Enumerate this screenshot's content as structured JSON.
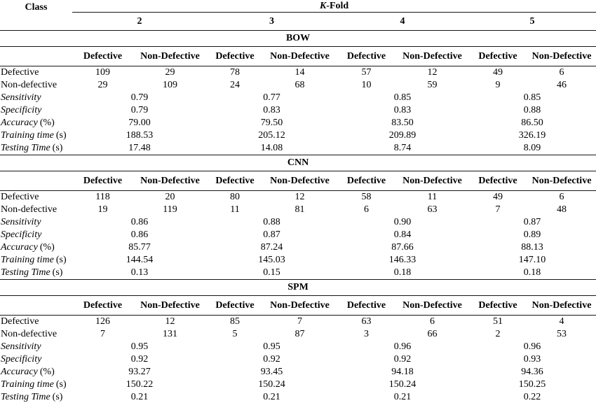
{
  "header": {
    "class": "Class",
    "k": "K",
    "fold_suffix": "-Fold",
    "folds": [
      "2",
      "3",
      "4",
      "5"
    ]
  },
  "labels": {
    "defective_col": "Defective",
    "non_defective_col": "Non-Defective",
    "defective_row": "Defective",
    "non_defective_row": "Non-defective",
    "sensitivity": "Sensitivity",
    "specificity": "Specificity",
    "accuracy": "Accuracy",
    "accuracy_unit": "(%)",
    "training_time": "Training time",
    "testing_time": "Testing Time",
    "time_unit": "(s)"
  },
  "sections": [
    {
      "title": "BOW",
      "defective": [
        "109",
        "29",
        "78",
        "14",
        "57",
        "12",
        "49",
        "6"
      ],
      "non_defective": [
        "29",
        "109",
        "24",
        "68",
        "10",
        "59",
        "9",
        "46"
      ],
      "sensitivity": [
        "0.79",
        "0.77",
        "0.85",
        "0.85"
      ],
      "specificity": [
        "0.79",
        "0.83",
        "0.83",
        "0.88"
      ],
      "accuracy": [
        "79.00",
        "79.50",
        "83.50",
        "86.50"
      ],
      "training_time": [
        "188.53",
        "205.12",
        "209.89",
        "326.19"
      ],
      "testing_time": [
        "17.48",
        "14.08",
        "8.74",
        "8.09"
      ]
    },
    {
      "title": "CNN",
      "defective": [
        "118",
        "20",
        "80",
        "12",
        "58",
        "11",
        "49",
        "6"
      ],
      "non_defective": [
        "19",
        "119",
        "11",
        "81",
        "6",
        "63",
        "7",
        "48"
      ],
      "sensitivity": [
        "0.86",
        "0.88",
        "0.90",
        "0.87"
      ],
      "specificity": [
        "0.86",
        "0.87",
        "0.84",
        "0.89"
      ],
      "accuracy": [
        "85.77",
        "87.24",
        "87.66",
        "88.13"
      ],
      "training_time": [
        "144.54",
        "145.03",
        "146.33",
        "147.10"
      ],
      "testing_time": [
        "0.13",
        "0.15",
        "0.18",
        "0.18"
      ]
    },
    {
      "title": "SPM",
      "defective": [
        "126",
        "12",
        "85",
        "7",
        "63",
        "6",
        "51",
        "4"
      ],
      "non_defective": [
        "7",
        "131",
        "5",
        "87",
        "3",
        "66",
        "2",
        "53"
      ],
      "sensitivity": [
        "0.95",
        "0.95",
        "0.96",
        "0.96"
      ],
      "specificity": [
        "0.92",
        "0.92",
        "0.92",
        "0.93"
      ],
      "accuracy": [
        "93.27",
        "93.45",
        "94.18",
        "94.36"
      ],
      "training_time": [
        "150.22",
        "150.24",
        "150.24",
        "150.25"
      ],
      "testing_time": [
        "0.21",
        "0.21",
        "0.21",
        "0.22"
      ]
    }
  ]
}
